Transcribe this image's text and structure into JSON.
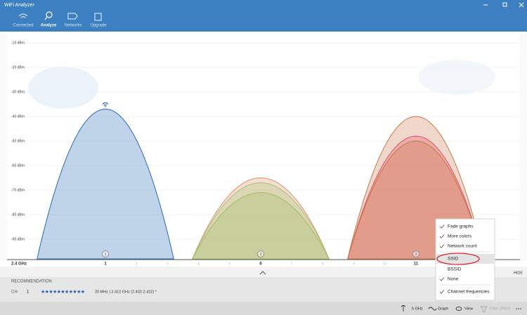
{
  "window": {
    "title": "WiFi Analyzer"
  },
  "tabs": [
    "Connected",
    "Analyze",
    "Networks",
    "Upgrade"
  ],
  "chart_data": {
    "type": "area",
    "x_label": "2.4 GHz",
    "xlim": [
      -1.5,
      13.5
    ],
    "xticks": [
      1,
      2,
      3,
      4,
      5,
      6,
      7,
      8,
      9,
      10,
      11
    ],
    "ylim": [
      -98,
      -5
    ],
    "yticks": [
      {
        "value": -10,
        "label": "-10 dBm"
      },
      {
        "value": -20,
        "label": "-20 dBm"
      },
      {
        "value": -30,
        "label": "-30 dBm"
      },
      {
        "value": -40,
        "label": "-40 dBm"
      },
      {
        "value": -50,
        "label": "-50 dBm"
      },
      {
        "value": -60,
        "label": "-60 dBm"
      },
      {
        "value": -70,
        "label": "-70 dBm"
      },
      {
        "value": -80,
        "label": "-80 dBm"
      },
      {
        "value": -90,
        "label": "-90 dBm"
      }
    ],
    "grid": true,
    "series": [
      {
        "channel": 1,
        "signal": -37,
        "color": "#2b6cb5",
        "connected": true
      },
      {
        "channel": 6,
        "signal": -65,
        "color": "#d9946a",
        "connected": false
      },
      {
        "channel": 6,
        "signal": -67,
        "color": "#a9c27c",
        "connected": false
      },
      {
        "channel": 6,
        "signal": -71,
        "color": "#9dbf5f",
        "connected": false
      },
      {
        "channel": 11,
        "signal": -40,
        "color": "#c97a4e",
        "connected": false
      },
      {
        "channel": 11,
        "signal": -48,
        "color": "#e0506a",
        "connected": false
      },
      {
        "channel": 11,
        "signal": -50,
        "color": "#cc7340",
        "connected": false
      }
    ],
    "counts": [
      {
        "channel": 1,
        "count": 1
      },
      {
        "channel": 6,
        "count": 3
      },
      {
        "channel": 11,
        "count": 3
      }
    ]
  },
  "panel": {
    "toggle": "HIDE",
    "heading": "RECOMMENDATION",
    "channel_label": "CH",
    "channel": 1,
    "rating": "★★★★★★★★★★★",
    "details": "20 MHz | 2.412 GHz  (2.402-2.422) *"
  },
  "toolbar": [
    "5 GHz",
    "Graph",
    "View",
    "Filter (PRO)"
  ],
  "menu": {
    "items": [
      {
        "label": "Fade graphs",
        "checked": true
      },
      {
        "label": "More colors",
        "checked": true
      },
      {
        "label": "Network count",
        "checked": true
      },
      {
        "label": "SSID",
        "checked": false
      },
      {
        "label": "BSSID",
        "checked": false
      },
      {
        "label": "None",
        "checked": true
      },
      {
        "label": "Channel frequencies",
        "checked": true
      }
    ]
  }
}
